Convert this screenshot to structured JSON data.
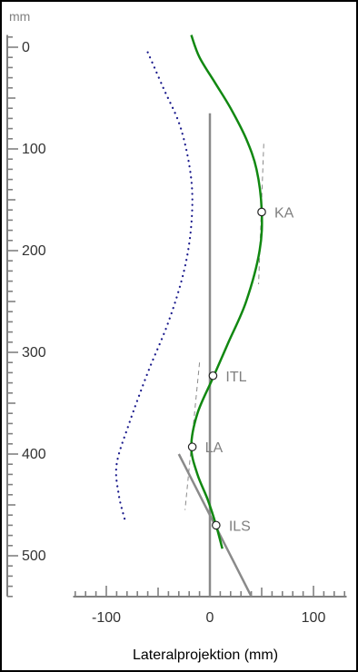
{
  "chart_data": {
    "type": "line",
    "title": "",
    "xlabel": "Lateralprojektion (mm)",
    "ylabel": "mm",
    "xlim": [
      -135,
      135
    ],
    "ylim": [
      -15,
      540
    ],
    "y_direction": "down",
    "x_ticks": [
      -100,
      0,
      100
    ],
    "x_tick_labels": [
      "-100",
      "0",
      "100"
    ],
    "y_ticks": [
      0,
      100,
      200,
      300,
      400,
      500
    ],
    "y_tick_labels": [
      "0",
      "100",
      "200",
      "300",
      "400",
      "500"
    ],
    "colors": {
      "spine_curve": "#118811",
      "dotted_curve": "#1a1a8c",
      "reference": "#8a8a8a",
      "label": "#808080",
      "axis": "#808080",
      "frame": "#000000"
    },
    "series": [
      {
        "style": "solid",
        "color": "#118811",
        "points": [
          [
            -18,
            -12
          ],
          [
            -10,
            10
          ],
          [
            5,
            35
          ],
          [
            20,
            60
          ],
          [
            35,
            90
          ],
          [
            45,
            120
          ],
          [
            50,
            160
          ],
          [
            48,
            200
          ],
          [
            35,
            250
          ],
          [
            18,
            290
          ],
          [
            3,
            325
          ],
          [
            -12,
            360
          ],
          [
            -18,
            393
          ],
          [
            -12,
            420
          ],
          [
            -2,
            445
          ],
          [
            6,
            470
          ],
          [
            12,
            493
          ]
        ]
      },
      {
        "style": "dotted",
        "color": "#1a1a8c",
        "points": [
          [
            -60,
            5
          ],
          [
            -45,
            40
          ],
          [
            -28,
            80
          ],
          [
            -18,
            130
          ],
          [
            -18,
            175
          ],
          [
            -25,
            220
          ],
          [
            -40,
            270
          ],
          [
            -60,
            320
          ],
          [
            -78,
            370
          ],
          [
            -90,
            410
          ],
          [
            -88,
            440
          ],
          [
            -82,
            465
          ]
        ]
      }
    ],
    "reference_lines": [
      {
        "kind": "vertical_axis",
        "points": [
          [
            0,
            65
          ],
          [
            0,
            540
          ]
        ]
      },
      {
        "kind": "tangent",
        "style": "solid",
        "points": [
          [
            -30,
            400
          ],
          [
            40,
            540
          ]
        ]
      },
      {
        "kind": "tangent",
        "style": "dashed",
        "points": [
          [
            52,
            95
          ],
          [
            47,
            233
          ]
        ]
      },
      {
        "kind": "tangent",
        "style": "dashed",
        "points": [
          [
            -10,
            310
          ],
          [
            -24,
            455
          ]
        ]
      }
    ],
    "annotations": [
      {
        "label": "KA",
        "x": 50,
        "y": 162
      },
      {
        "label": "ITL",
        "x": 3,
        "y": 323
      },
      {
        "label": "LA",
        "x": -17,
        "y": 393
      },
      {
        "label": "ILS",
        "x": 6,
        "y": 470
      }
    ]
  }
}
